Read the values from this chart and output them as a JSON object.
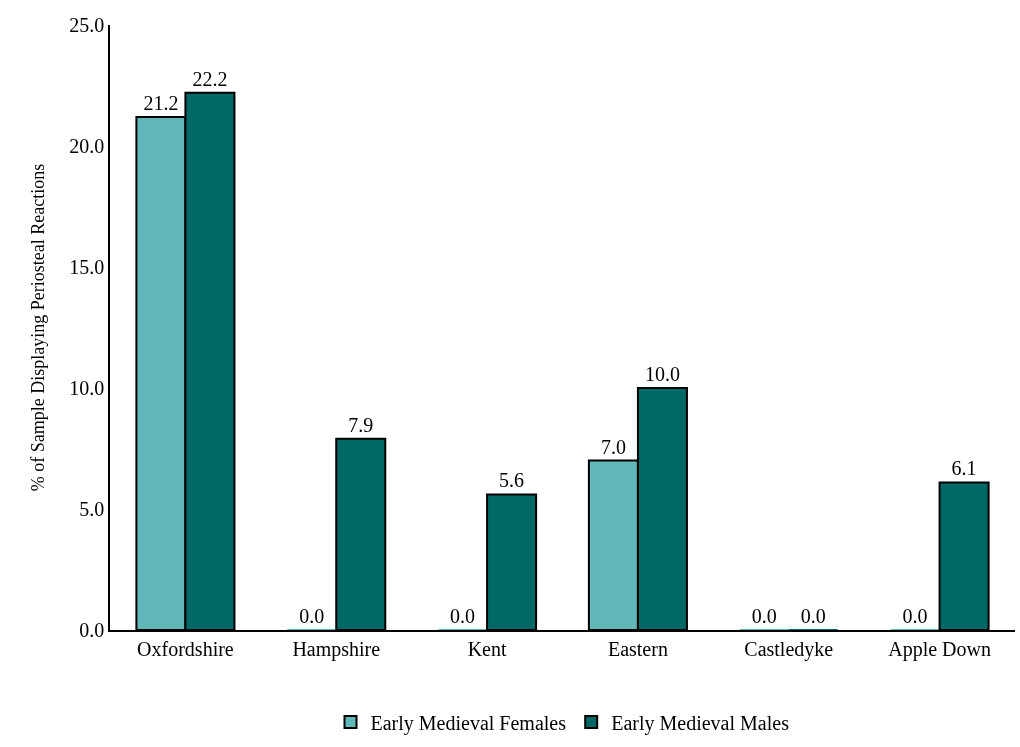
{
  "chart_data": {
    "type": "bar",
    "ylabel": "% of Sample Displaying Periosteal Reactions",
    "categories": [
      "Oxfordshire",
      "Hampshire",
      "Kent",
      "Eastern",
      "Castledyke",
      "Apple Down"
    ],
    "series": [
      {
        "name": "Early Medieval Females",
        "color": "#62b8b8",
        "values": [
          21.2,
          0,
          0,
          7,
          0,
          0
        ],
        "value_labels": [
          "21.2",
          "0.0",
          "0.0",
          "7.0",
          "0.0",
          "0.0"
        ]
      },
      {
        "name": "Early Medieval Males",
        "color": "#006966",
        "values": [
          22.2,
          7.9,
          5.6,
          10,
          0,
          6.1
        ],
        "value_labels": [
          "22.2",
          "7.9",
          "5.6",
          "10.0",
          "0.0",
          "6.1"
        ]
      }
    ],
    "ylim": [
      0,
      25
    ],
    "yticks": [
      {
        "value": 0,
        "label": "0.0"
      },
      {
        "value": 5,
        "label": "5.0"
      },
      {
        "value": 10,
        "label": "10.0"
      },
      {
        "value": 15,
        "label": "15.0"
      },
      {
        "value": 20,
        "label": "20.0"
      },
      {
        "value": 25,
        "label": "25.0"
      }
    ],
    "grid": false,
    "legend": "bottom"
  }
}
